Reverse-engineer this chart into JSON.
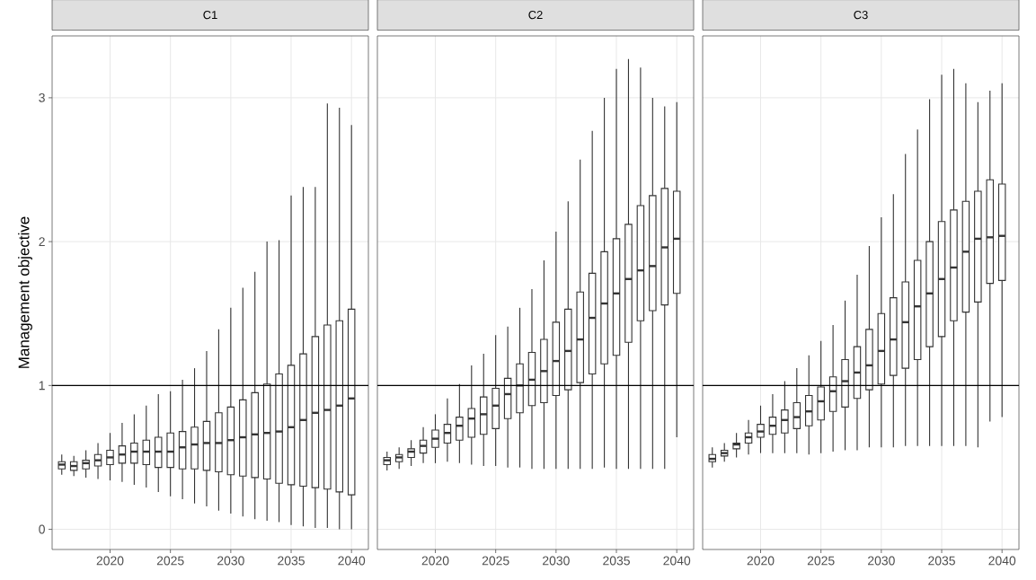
{
  "chart_data": [
    {
      "type": "box",
      "title": "C1",
      "ylabel": "Management objective",
      "color": "#333333",
      "grid": true,
      "x": [
        2016,
        2017,
        2018,
        2019,
        2020,
        2021,
        2022,
        2023,
        2024,
        2025,
        2026,
        2027,
        2028,
        2029,
        2030,
        2031,
        2032,
        2033,
        2034,
        2035,
        2036,
        2037,
        2038,
        2039,
        2040
      ],
      "xlim": [
        2015.2,
        2041.4
      ],
      "ylim": [
        -0.14,
        3.43
      ],
      "xticks": [
        2020,
        2025,
        2030,
        2035,
        2040
      ],
      "yticks": [
        0,
        1,
        2,
        3
      ],
      "ref_lines": [
        {
          "axis": "y",
          "value": 1,
          "color": "#000000"
        }
      ],
      "boxes": [
        {
          "low": 0.38,
          "q1": 0.42,
          "median": 0.45,
          "q3": 0.47,
          "high": 0.52
        },
        {
          "low": 0.37,
          "q1": 0.41,
          "median": 0.44,
          "q3": 0.47,
          "high": 0.51
        },
        {
          "low": 0.36,
          "q1": 0.42,
          "median": 0.46,
          "q3": 0.48,
          "high": 0.55
        },
        {
          "low": 0.35,
          "q1": 0.44,
          "median": 0.48,
          "q3": 0.52,
          "high": 0.6
        },
        {
          "low": 0.34,
          "q1": 0.45,
          "median": 0.5,
          "q3": 0.55,
          "high": 0.67
        },
        {
          "low": 0.33,
          "q1": 0.46,
          "median": 0.52,
          "q3": 0.58,
          "high": 0.74
        },
        {
          "low": 0.31,
          "q1": 0.46,
          "median": 0.54,
          "q3": 0.6,
          "high": 0.8
        },
        {
          "low": 0.29,
          "q1": 0.45,
          "median": 0.54,
          "q3": 0.62,
          "high": 0.86
        },
        {
          "low": 0.26,
          "q1": 0.43,
          "median": 0.54,
          "q3": 0.64,
          "high": 0.94
        },
        {
          "low": 0.23,
          "q1": 0.43,
          "median": 0.54,
          "q3": 0.67,
          "high": 0.96
        },
        {
          "low": 0.21,
          "q1": 0.42,
          "median": 0.57,
          "q3": 0.68,
          "high": 1.04
        },
        {
          "low": 0.18,
          "q1": 0.42,
          "median": 0.59,
          "q3": 0.71,
          "high": 1.12
        },
        {
          "low": 0.16,
          "q1": 0.41,
          "median": 0.6,
          "q3": 0.75,
          "high": 1.24
        },
        {
          "low": 0.13,
          "q1": 0.4,
          "median": 0.6,
          "q3": 0.81,
          "high": 1.39
        },
        {
          "low": 0.11,
          "q1": 0.38,
          "median": 0.62,
          "q3": 0.85,
          "high": 1.54
        },
        {
          "low": 0.09,
          "q1": 0.37,
          "median": 0.64,
          "q3": 0.9,
          "high": 1.68
        },
        {
          "low": 0.07,
          "q1": 0.36,
          "median": 0.66,
          "q3": 0.95,
          "high": 1.79
        },
        {
          "low": 0.06,
          "q1": 0.35,
          "median": 0.67,
          "q3": 1.01,
          "high": 2.0
        },
        {
          "low": 0.05,
          "q1": 0.32,
          "median": 0.68,
          "q3": 1.08,
          "high": 2.01
        },
        {
          "low": 0.03,
          "q1": 0.31,
          "median": 0.71,
          "q3": 1.14,
          "high": 2.32
        },
        {
          "low": 0.02,
          "q1": 0.3,
          "median": 0.76,
          "q3": 1.22,
          "high": 2.38
        },
        {
          "low": 0.01,
          "q1": 0.29,
          "median": 0.81,
          "q3": 1.34,
          "high": 2.38
        },
        {
          "low": 0.01,
          "q1": 0.28,
          "median": 0.83,
          "q3": 1.42,
          "high": 2.96
        },
        {
          "low": 0.0,
          "q1": 0.26,
          "median": 0.86,
          "q3": 1.45,
          "high": 2.93
        },
        {
          "low": 0.0,
          "q1": 0.24,
          "median": 0.91,
          "q3": 1.53,
          "high": 2.81
        }
      ]
    },
    {
      "type": "box",
      "title": "C2",
      "color": "#333333",
      "grid": true,
      "tick_labels": "x",
      "x": [
        2016,
        2017,
        2018,
        2019,
        2020,
        2021,
        2022,
        2023,
        2024,
        2025,
        2026,
        2027,
        2028,
        2029,
        2030,
        2031,
        2032,
        2033,
        2034,
        2035,
        2036,
        2037,
        2038,
        2039,
        2040
      ],
      "xlim": [
        2015.2,
        2041.4
      ],
      "ylim": [
        -0.14,
        3.43
      ],
      "xticks": [
        2020,
        2025,
        2030,
        2035,
        2040
      ],
      "yticks": [
        0,
        1,
        2,
        3
      ],
      "ref_lines": [
        {
          "axis": "y",
          "value": 1,
          "color": "#000000"
        }
      ],
      "boxes": [
        {
          "low": 0.41,
          "q1": 0.45,
          "median": 0.48,
          "q3": 0.5,
          "high": 0.54
        },
        {
          "low": 0.42,
          "q1": 0.47,
          "median": 0.5,
          "q3": 0.52,
          "high": 0.57
        },
        {
          "low": 0.44,
          "q1": 0.5,
          "median": 0.54,
          "q3": 0.56,
          "high": 0.62
        },
        {
          "low": 0.46,
          "q1": 0.53,
          "median": 0.58,
          "q3": 0.62,
          "high": 0.71
        },
        {
          "low": 0.46,
          "q1": 0.57,
          "median": 0.63,
          "q3": 0.69,
          "high": 0.8
        },
        {
          "low": 0.47,
          "q1": 0.6,
          "median": 0.67,
          "q3": 0.73,
          "high": 0.91
        },
        {
          "low": 0.46,
          "q1": 0.62,
          "median": 0.72,
          "q3": 0.78,
          "high": 1.01
        },
        {
          "low": 0.45,
          "q1": 0.64,
          "median": 0.77,
          "q3": 0.84,
          "high": 1.14
        },
        {
          "low": 0.44,
          "q1": 0.66,
          "median": 0.8,
          "q3": 0.92,
          "high": 1.22
        },
        {
          "low": 0.44,
          "q1": 0.7,
          "median": 0.86,
          "q3": 0.98,
          "high": 1.35
        },
        {
          "low": 0.43,
          "q1": 0.77,
          "median": 0.94,
          "q3": 1.05,
          "high": 1.41
        },
        {
          "low": 0.43,
          "q1": 0.81,
          "median": 1.0,
          "q3": 1.15,
          "high": 1.54
        },
        {
          "low": 0.42,
          "q1": 0.86,
          "median": 1.04,
          "q3": 1.23,
          "high": 1.67
        },
        {
          "low": 0.42,
          "q1": 0.88,
          "median": 1.1,
          "q3": 1.32,
          "high": 1.87
        },
        {
          "low": 0.42,
          "q1": 0.93,
          "median": 1.17,
          "q3": 1.44,
          "high": 2.07
        },
        {
          "low": 0.42,
          "q1": 0.97,
          "median": 1.24,
          "q3": 1.53,
          "high": 2.28
        },
        {
          "low": 0.42,
          "q1": 1.02,
          "median": 1.32,
          "q3": 1.65,
          "high": 2.57
        },
        {
          "low": 0.42,
          "q1": 1.08,
          "median": 1.47,
          "q3": 1.78,
          "high": 2.77
        },
        {
          "low": 0.43,
          "q1": 1.15,
          "median": 1.57,
          "q3": 1.93,
          "high": 3.0
        },
        {
          "low": 0.42,
          "q1": 1.21,
          "median": 1.64,
          "q3": 2.02,
          "high": 3.2
        },
        {
          "low": 0.42,
          "q1": 1.3,
          "median": 1.74,
          "q3": 2.12,
          "high": 3.27
        },
        {
          "low": 0.42,
          "q1": 1.45,
          "median": 1.8,
          "q3": 2.25,
          "high": 3.21
        },
        {
          "low": 0.42,
          "q1": 1.52,
          "median": 1.83,
          "q3": 2.32,
          "high": 3.0
        },
        {
          "low": 0.42,
          "q1": 1.56,
          "median": 1.96,
          "q3": 2.37,
          "high": 2.94
        },
        {
          "low": 0.64,
          "q1": 1.64,
          "median": 2.02,
          "q3": 2.35,
          "high": 2.97
        }
      ]
    },
    {
      "type": "box",
      "title": "C3",
      "color": "#333333",
      "grid": true,
      "tick_labels": "x",
      "x": [
        2016,
        2017,
        2018,
        2019,
        2020,
        2021,
        2022,
        2023,
        2024,
        2025,
        2026,
        2027,
        2028,
        2029,
        2030,
        2031,
        2032,
        2033,
        2034,
        2035,
        2036,
        2037,
        2038,
        2039,
        2040
      ],
      "xlim": [
        2015.2,
        2041.4
      ],
      "ylim": [
        -0.14,
        3.43
      ],
      "xticks": [
        2020,
        2025,
        2030,
        2035,
        2040
      ],
      "yticks": [
        0,
        1,
        2,
        3
      ],
      "ref_lines": [
        {
          "axis": "y",
          "value": 1,
          "color": "#000000"
        }
      ],
      "boxes": [
        {
          "low": 0.43,
          "q1": 0.47,
          "median": 0.49,
          "q3": 0.52,
          "high": 0.57
        },
        {
          "low": 0.47,
          "q1": 0.51,
          "median": 0.53,
          "q3": 0.55,
          "high": 0.6
        },
        {
          "low": 0.5,
          "q1": 0.56,
          "median": 0.59,
          "q3": 0.6,
          "high": 0.67
        },
        {
          "low": 0.52,
          "q1": 0.6,
          "median": 0.64,
          "q3": 0.67,
          "high": 0.76
        },
        {
          "low": 0.53,
          "q1": 0.64,
          "median": 0.68,
          "q3": 0.73,
          "high": 0.86
        },
        {
          "low": 0.53,
          "q1": 0.66,
          "median": 0.72,
          "q3": 0.78,
          "high": 0.94
        },
        {
          "low": 0.53,
          "q1": 0.67,
          "median": 0.76,
          "q3": 0.83,
          "high": 1.03
        },
        {
          "low": 0.53,
          "q1": 0.7,
          "median": 0.78,
          "q3": 0.88,
          "high": 1.12
        },
        {
          "low": 0.52,
          "q1": 0.72,
          "median": 0.82,
          "q3": 0.93,
          "high": 1.21
        },
        {
          "low": 0.53,
          "q1": 0.76,
          "median": 0.89,
          "q3": 0.99,
          "high": 1.31
        },
        {
          "low": 0.54,
          "q1": 0.82,
          "median": 0.96,
          "q3": 1.06,
          "high": 1.42
        },
        {
          "low": 0.55,
          "q1": 0.85,
          "median": 1.03,
          "q3": 1.18,
          "high": 1.59
        },
        {
          "low": 0.55,
          "q1": 0.91,
          "median": 1.09,
          "q3": 1.27,
          "high": 1.77
        },
        {
          "low": 0.57,
          "q1": 0.97,
          "median": 1.14,
          "q3": 1.39,
          "high": 1.97
        },
        {
          "low": 0.57,
          "q1": 1.01,
          "median": 1.24,
          "q3": 1.5,
          "high": 2.17
        },
        {
          "low": 0.57,
          "q1": 1.07,
          "median": 1.32,
          "q3": 1.61,
          "high": 2.33
        },
        {
          "low": 0.58,
          "q1": 1.12,
          "median": 1.44,
          "q3": 1.72,
          "high": 2.61
        },
        {
          "low": 0.58,
          "q1": 1.18,
          "median": 1.55,
          "q3": 1.87,
          "high": 2.78
        },
        {
          "low": 0.58,
          "q1": 1.27,
          "median": 1.64,
          "q3": 2.0,
          "high": 2.99
        },
        {
          "low": 0.58,
          "q1": 1.34,
          "median": 1.74,
          "q3": 2.14,
          "high": 3.16
        },
        {
          "low": 0.58,
          "q1": 1.45,
          "median": 1.82,
          "q3": 2.22,
          "high": 3.2
        },
        {
          "low": 0.58,
          "q1": 1.51,
          "median": 1.93,
          "q3": 2.28,
          "high": 3.1
        },
        {
          "low": 0.57,
          "q1": 1.58,
          "median": 2.02,
          "q3": 2.35,
          "high": 2.97
        },
        {
          "low": 0.75,
          "q1": 1.71,
          "median": 2.03,
          "q3": 2.43,
          "high": 3.05
        },
        {
          "low": 0.78,
          "q1": 1.73,
          "median": 2.04,
          "q3": 2.4,
          "high": 3.1
        }
      ]
    }
  ]
}
